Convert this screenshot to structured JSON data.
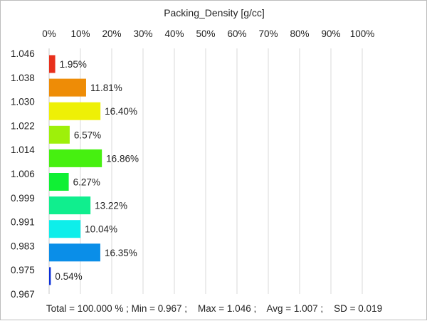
{
  "chart_data": {
    "type": "bar",
    "orientation": "horizontal",
    "title": "Packing_Density [g/cc]",
    "x_axis": {
      "position": "top",
      "range": [
        0,
        100
      ],
      "tick_labels": [
        "0%",
        "10%",
        "20%",
        "30%",
        "40%",
        "50%",
        "60%",
        "70%",
        "80%",
        "90%",
        "100%"
      ]
    },
    "y_axis": {
      "tick_labels": [
        "1.046",
        "1.038",
        "1.030",
        "1.022",
        "1.014",
        "1.006",
        "0.999",
        "0.991",
        "0.983",
        "0.975",
        "0.967"
      ]
    },
    "grid": true,
    "bars": [
      {
        "value": 1.95,
        "label": "1.95%",
        "color": "#e8301c"
      },
      {
        "value": 11.81,
        "label": "11.81%",
        "color": "#ee8c06"
      },
      {
        "value": 16.4,
        "label": "16.40%",
        "color": "#eef006"
      },
      {
        "value": 6.57,
        "label": "6.57%",
        "color": "#9ef00a"
      },
      {
        "value": 16.86,
        "label": "16.86%",
        "color": "#46f010"
      },
      {
        "value": 6.27,
        "label": "6.27%",
        "color": "#10f034"
      },
      {
        "value": 13.22,
        "label": "13.22%",
        "color": "#10ee8e"
      },
      {
        "value": 10.04,
        "label": "10.04%",
        "color": "#0eeeea"
      },
      {
        "value": 16.35,
        "label": "16.35%",
        "color": "#0a8ee8"
      },
      {
        "value": 0.54,
        "label": "0.54%",
        "color": "#0a2ed8"
      }
    ],
    "footer": "Total = 100.000 % ; Min = 0.967 ;    Max = 1.046 ;    Avg = 1.007 ;    SD = 0.019"
  }
}
